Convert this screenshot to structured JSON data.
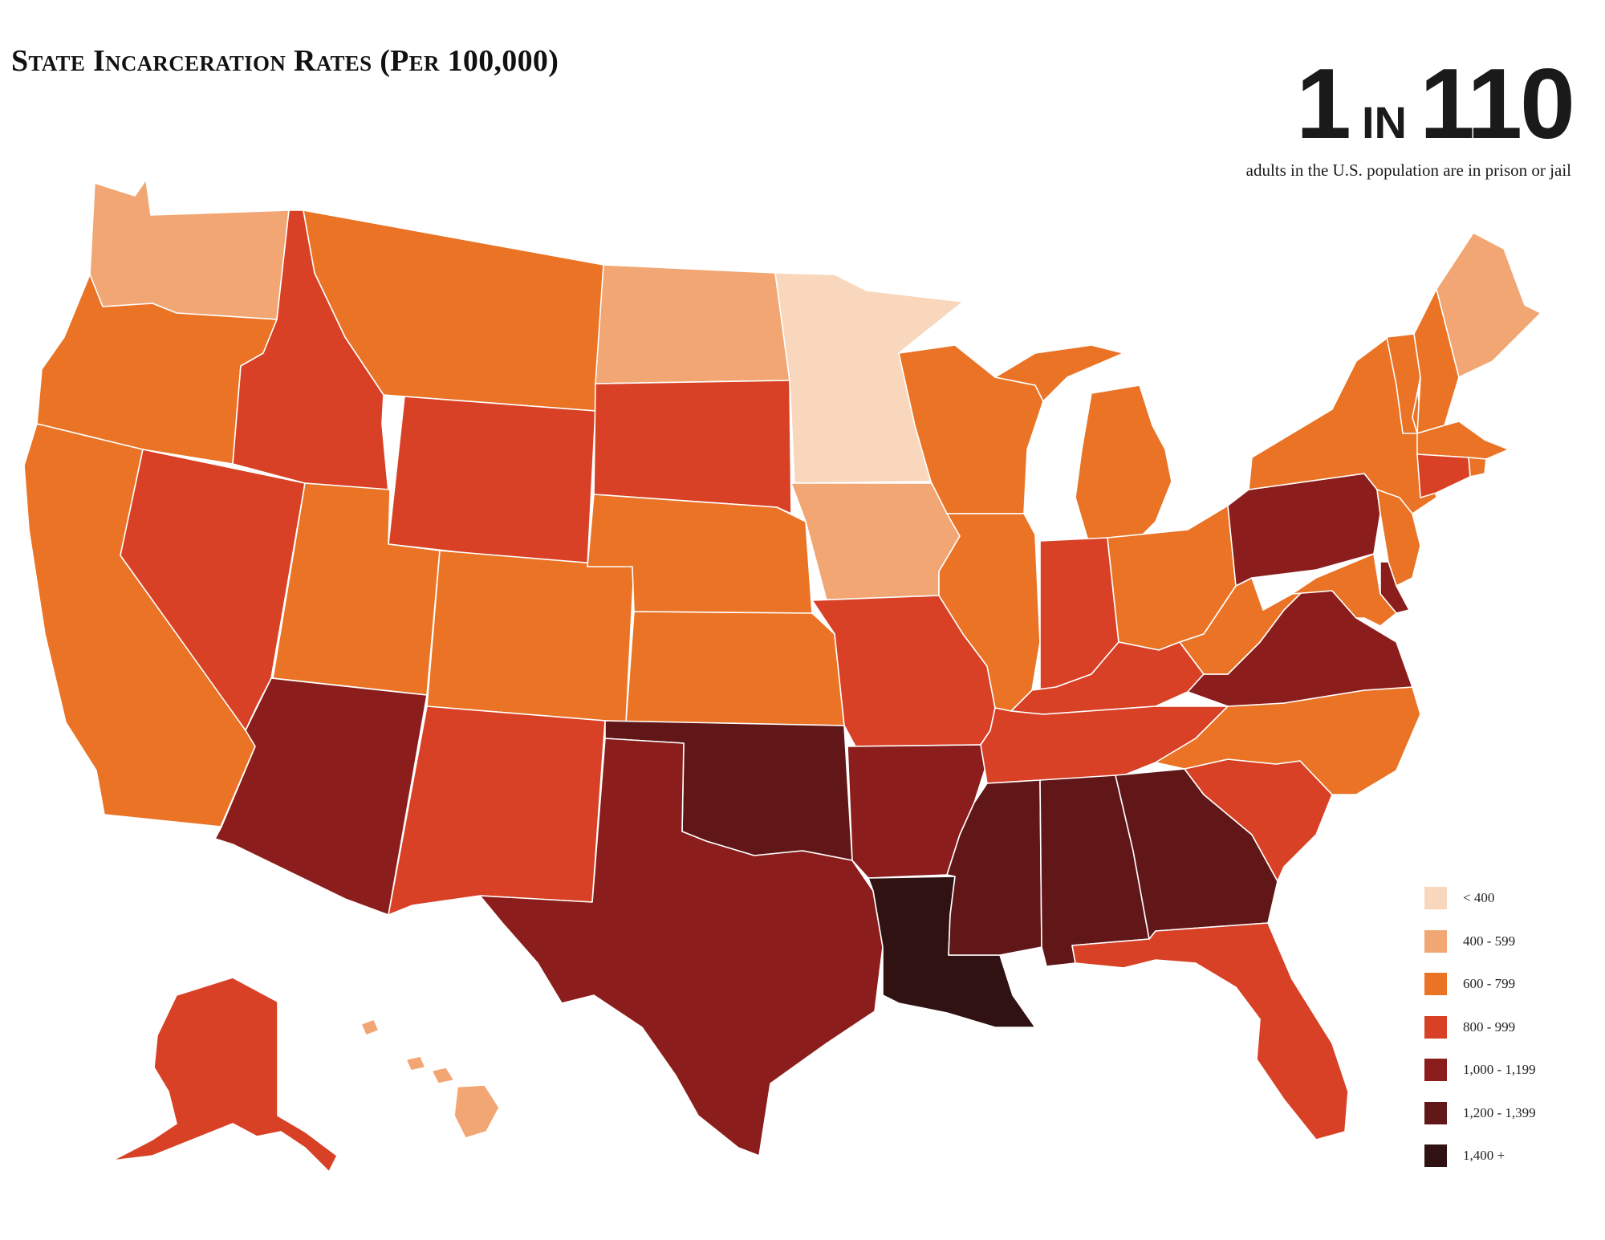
{
  "title": "State Incarceration Rates (Per 100,000)",
  "headline": {
    "number_a": "1",
    "word": "in",
    "number_b": "110",
    "subtitle": "adults in the U.S. population are in prison or jail"
  },
  "legend": [
    {
      "label": "< 400",
      "color": "#f8d7bc"
    },
    {
      "label": "400 - 599",
      "color": "#f1a673"
    },
    {
      "label": "600 - 799",
      "color": "#ea7325"
    },
    {
      "label": "800 - 999",
      "color": "#d84126"
    },
    {
      "label": "1,000 - 1,199",
      "color": "#8b1e1d"
    },
    {
      "label": "1,200 - 1,399",
      "color": "#611718"
    },
    {
      "label": "1,400 +",
      "color": "#301212"
    }
  ],
  "states": {
    "WA": 1,
    "OR": 2,
    "CA": 2,
    "NV": 3,
    "ID": 3,
    "MT": 2,
    "WY": 3,
    "UT": 2,
    "CO": 2,
    "AZ": 4,
    "NM": 3,
    "ND": 1,
    "SD": 3,
    "NE": 2,
    "KS": 2,
    "OK": 5,
    "TX": 4,
    "MN": 0,
    "IA": 1,
    "MO": 3,
    "AR": 4,
    "LA": 6,
    "WI": 2,
    "IL": 2,
    "MI": 2,
    "IN": 3,
    "OH": 2,
    "KY": 3,
    "TN": 3,
    "MS": 5,
    "AL": 5,
    "GA": 5,
    "FL": 3,
    "SC": 3,
    "NC": 2,
    "VA": 4,
    "WV": 2,
    "PA": 4,
    "NY": 2,
    "VT": 2,
    "NH": 2,
    "ME": 1,
    "MA": 2,
    "RI": 2,
    "CT": 3,
    "NJ": 2,
    "DE": 4,
    "MD": 2,
    "AK": 3,
    "HI": 1
  }
}
